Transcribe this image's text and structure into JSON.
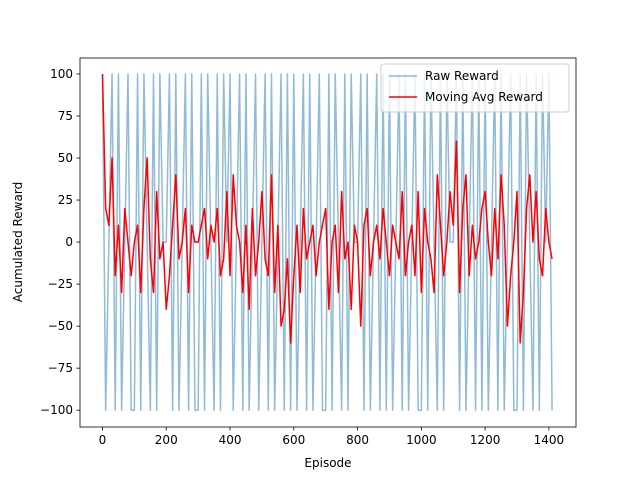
{
  "chart_data": {
    "type": "line",
    "x_label": "Episode",
    "y_label": "Acumulated Reward",
    "x": [
      0,
      10,
      20,
      30,
      40,
      50,
      60,
      70,
      80,
      90,
      100,
      110,
      120,
      130,
      140,
      150,
      160,
      170,
      180,
      190,
      200,
      210,
      220,
      230,
      240,
      250,
      260,
      270,
      280,
      290,
      300,
      310,
      320,
      330,
      340,
      350,
      360,
      370,
      380,
      390,
      400,
      410,
      420,
      430,
      440,
      450,
      460,
      470,
      480,
      490,
      500,
      510,
      520,
      530,
      540,
      550,
      560,
      570,
      580,
      590,
      600,
      610,
      620,
      630,
      640,
      650,
      660,
      670,
      680,
      690,
      700,
      710,
      720,
      730,
      740,
      750,
      760,
      770,
      780,
      790,
      800,
      810,
      820,
      830,
      840,
      850,
      860,
      870,
      880,
      890,
      900,
      910,
      920,
      930,
      940,
      950,
      960,
      970,
      980,
      990,
      1000,
      1010,
      1020,
      1030,
      1040,
      1050,
      1060,
      1070,
      1080,
      1090,
      1100,
      1110,
      1120,
      1130,
      1140,
      1150,
      1160,
      1170,
      1180,
      1190,
      1200,
      1210,
      1220,
      1230,
      1240,
      1250,
      1260,
      1270,
      1280,
      1290,
      1300,
      1310,
      1320,
      1330,
      1340,
      1350,
      1360,
      1370,
      1380,
      1390,
      1400,
      1410
    ],
    "series": [
      {
        "name": "Raw Reward",
        "color": "#1f77b4",
        "opacity": 0.5,
        "values": [
          100,
          -100,
          0,
          100,
          -100,
          100,
          -100,
          0,
          100,
          -100,
          -100,
          100,
          -100,
          100,
          0,
          -100,
          100,
          -100,
          100,
          0,
          0,
          100,
          -100,
          100,
          -100,
          0,
          100,
          -100,
          100,
          -100,
          -100,
          100,
          -100,
          100,
          0,
          -100,
          100,
          -100,
          100,
          0,
          100,
          -100,
          0,
          100,
          -100,
          100,
          -100,
          0,
          100,
          -100,
          0,
          100,
          -100,
          100,
          -100,
          0,
          100,
          -100,
          100,
          -100,
          100,
          -100,
          0,
          100,
          -100,
          100,
          -100,
          0,
          100,
          -100,
          -100,
          100,
          -100,
          100,
          0,
          -100,
          100,
          -100,
          100,
          0,
          0,
          100,
          -100,
          100,
          -100,
          0,
          100,
          -100,
          100,
          -100,
          100,
          -100,
          0,
          100,
          -100,
          100,
          -100,
          0,
          100,
          -100,
          -100,
          100,
          -100,
          100,
          0,
          -100,
          100,
          -100,
          100,
          0,
          0,
          100,
          -100,
          100,
          -100,
          0,
          100,
          -100,
          100,
          -100,
          100,
          -100,
          0,
          100,
          -100,
          100,
          -100,
          0,
          100,
          -100,
          -100,
          100,
          -100,
          100,
          0,
          -100,
          100,
          -100,
          100,
          0,
          100,
          -100
        ]
      },
      {
        "name": "Moving Avg Reward",
        "color": "#ff0000",
        "opacity": 1,
        "values": [
          100,
          20,
          10,
          50,
          -20,
          10,
          -30,
          20,
          0,
          -20,
          0,
          10,
          -30,
          20,
          50,
          -10,
          -30,
          30,
          -10,
          0,
          -40,
          -20,
          10,
          40,
          -10,
          0,
          20,
          -30,
          10,
          0,
          0,
          10,
          20,
          -10,
          10,
          0,
          20,
          -20,
          -10,
          30,
          -20,
          40,
          10,
          0,
          -30,
          10,
          -40,
          20,
          -20,
          0,
          30,
          -10,
          -20,
          40,
          -30,
          10,
          -50,
          -40,
          -10,
          -60,
          -20,
          10,
          -30,
          20,
          -10,
          0,
          10,
          -20,
          0,
          10,
          20,
          -40,
          0,
          10,
          -30,
          30,
          -10,
          0,
          -40,
          10,
          0,
          -50,
          10,
          20,
          -20,
          0,
          10,
          -10,
          20,
          0,
          -20,
          10,
          0,
          -10,
          30,
          -20,
          0,
          10,
          -20,
          30,
          -30,
          20,
          0,
          -10,
          -30,
          40,
          10,
          -20,
          0,
          30,
          10,
          60,
          -30,
          20,
          40,
          -20,
          10,
          -10,
          0,
          20,
          30,
          0,
          -20,
          20,
          -10,
          40,
          10,
          -50,
          -20,
          0,
          30,
          -60,
          -30,
          20,
          40,
          0,
          30,
          -10,
          -20,
          20,
          0,
          -10
        ]
      }
    ],
    "xlim": [
      -70.5,
      1485
    ],
    "ylim": [
      -110,
      109.5
    ],
    "xticks": [
      0,
      200,
      400,
      600,
      800,
      1000,
      1200,
      1400
    ],
    "yticks": [
      {
        "value": -100,
        "label": "−100"
      },
      {
        "value": -75,
        "label": "−75"
      },
      {
        "value": -50,
        "label": "−50"
      },
      {
        "value": -25,
        "label": "−25"
      },
      0,
      25,
      50,
      75,
      100
    ],
    "legend": "upper right"
  }
}
